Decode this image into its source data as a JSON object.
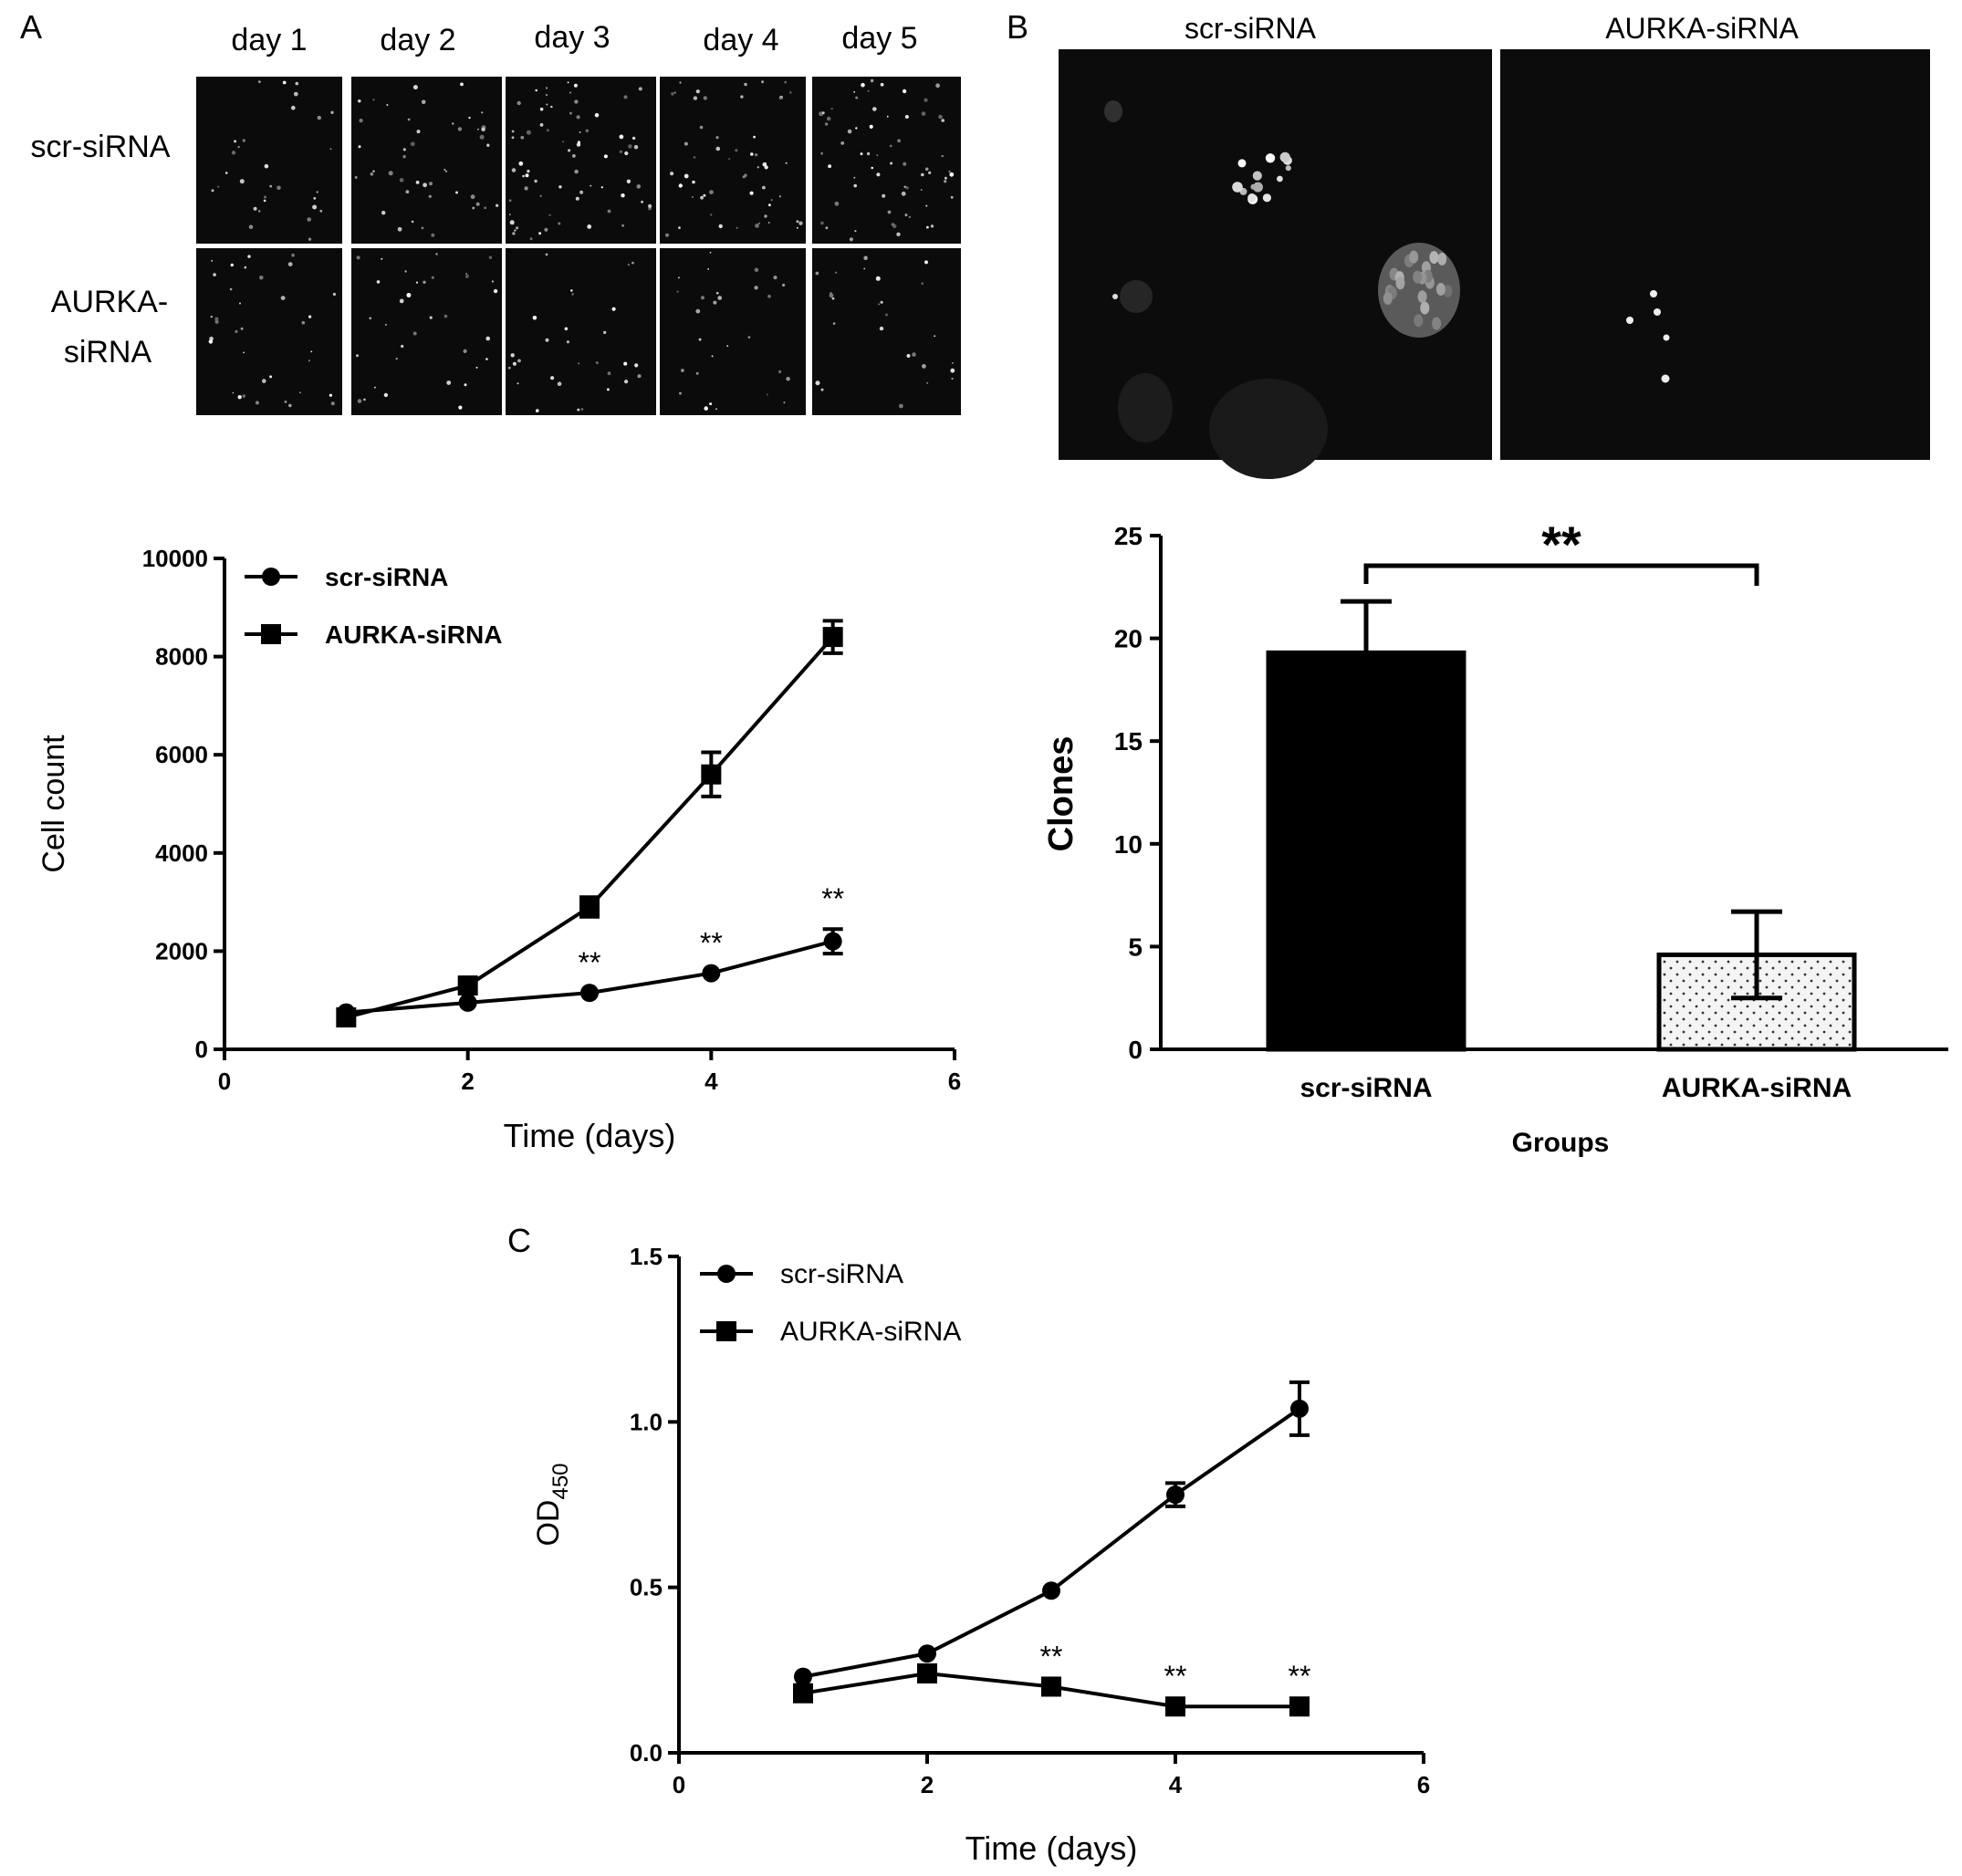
{
  "panels": {
    "A": {
      "letter": "A",
      "day_labels": [
        "day 1",
        "day 2",
        "day 3",
        "day 4",
        "day 5"
      ],
      "row_labels": [
        [
          "scr-siRNA"
        ],
        [
          "AURKA-",
          "siRNA"
        ]
      ]
    },
    "B": {
      "letter": "B",
      "image_labels": [
        "scr-siRNA",
        "AURKA-siRNA"
      ]
    },
    "C": {
      "letter": "C"
    }
  },
  "chart_data": [
    {
      "id": "A-growth",
      "type": "line",
      "title": "",
      "xlabel": "Time (days)",
      "ylabel": "Cell count",
      "xlim": [
        0,
        6
      ],
      "ylim": [
        0,
        10000
      ],
      "xticks": [
        0,
        2,
        4,
        6
      ],
      "yticks": [
        0,
        2000,
        4000,
        6000,
        8000,
        10000
      ],
      "legend_position": "top-left",
      "series": [
        {
          "name": "scr-siRNA",
          "marker": "circle",
          "x": [
            1,
            2,
            3,
            4,
            5
          ],
          "y": [
            750,
            950,
            1150,
            1550,
            2200
          ],
          "err": [
            0,
            0,
            0,
            0,
            250
          ]
        },
        {
          "name": "AURKA-siRNA",
          "marker": "square",
          "x": [
            1,
            2,
            3,
            4,
            5
          ],
          "y": [
            650,
            1300,
            2900,
            5600,
            8400
          ],
          "err": [
            0,
            0,
            200,
            450,
            330
          ]
        }
      ],
      "annotations": [
        {
          "x": 3,
          "y": 1150,
          "text": "**"
        },
        {
          "x": 4,
          "y": 1550,
          "text": "**"
        },
        {
          "x": 5,
          "y": 2450,
          "text": "**"
        }
      ]
    },
    {
      "id": "B-clones",
      "type": "bar",
      "title": "",
      "xlabel": "Groups",
      "ylabel": "Clones",
      "ylim": [
        0,
        25
      ],
      "yticks": [
        0,
        5,
        10,
        15,
        20,
        25
      ],
      "categories": [
        "scr-siRNA",
        "AURKA-siRNA"
      ],
      "values": [
        19.3,
        4.6
      ],
      "errors": [
        2.5,
        2.1
      ],
      "bar_fills": [
        "solid-black",
        "dotted"
      ],
      "significance": {
        "between": [
          0,
          1
        ],
        "text": "**"
      }
    },
    {
      "id": "C-od450",
      "type": "line",
      "title": "",
      "xlabel": "Time (days)",
      "ylabel_main": "OD",
      "ylabel_sub": "450",
      "xlim": [
        0,
        6
      ],
      "ylim": [
        0,
        1.5
      ],
      "xticks": [
        0,
        2,
        4,
        6
      ],
      "yticks": [
        0.0,
        0.5,
        1.0,
        1.5
      ],
      "ytick_labels": [
        "0.0",
        "0.5",
        "1.0",
        "1.5"
      ],
      "legend_position": "top-left",
      "series": [
        {
          "name": "scr-siRNA",
          "marker": "circle",
          "x": [
            1,
            2,
            3,
            4,
            5
          ],
          "y": [
            0.23,
            0.3,
            0.49,
            0.78,
            1.04
          ],
          "err": [
            0,
            0,
            0,
            0.035,
            0.08
          ]
        },
        {
          "name": "AURKA-siRNA",
          "marker": "square",
          "x": [
            1,
            2,
            3,
            4,
            5
          ],
          "y": [
            0.18,
            0.24,
            0.2,
            0.14,
            0.14
          ],
          "err": [
            0,
            0,
            0,
            0,
            0
          ]
        }
      ],
      "annotations": [
        {
          "x": 3,
          "y": 0.2,
          "text": "**"
        },
        {
          "x": 4,
          "y": 0.14,
          "text": "**"
        },
        {
          "x": 5,
          "y": 0.14,
          "text": "**"
        }
      ]
    }
  ]
}
